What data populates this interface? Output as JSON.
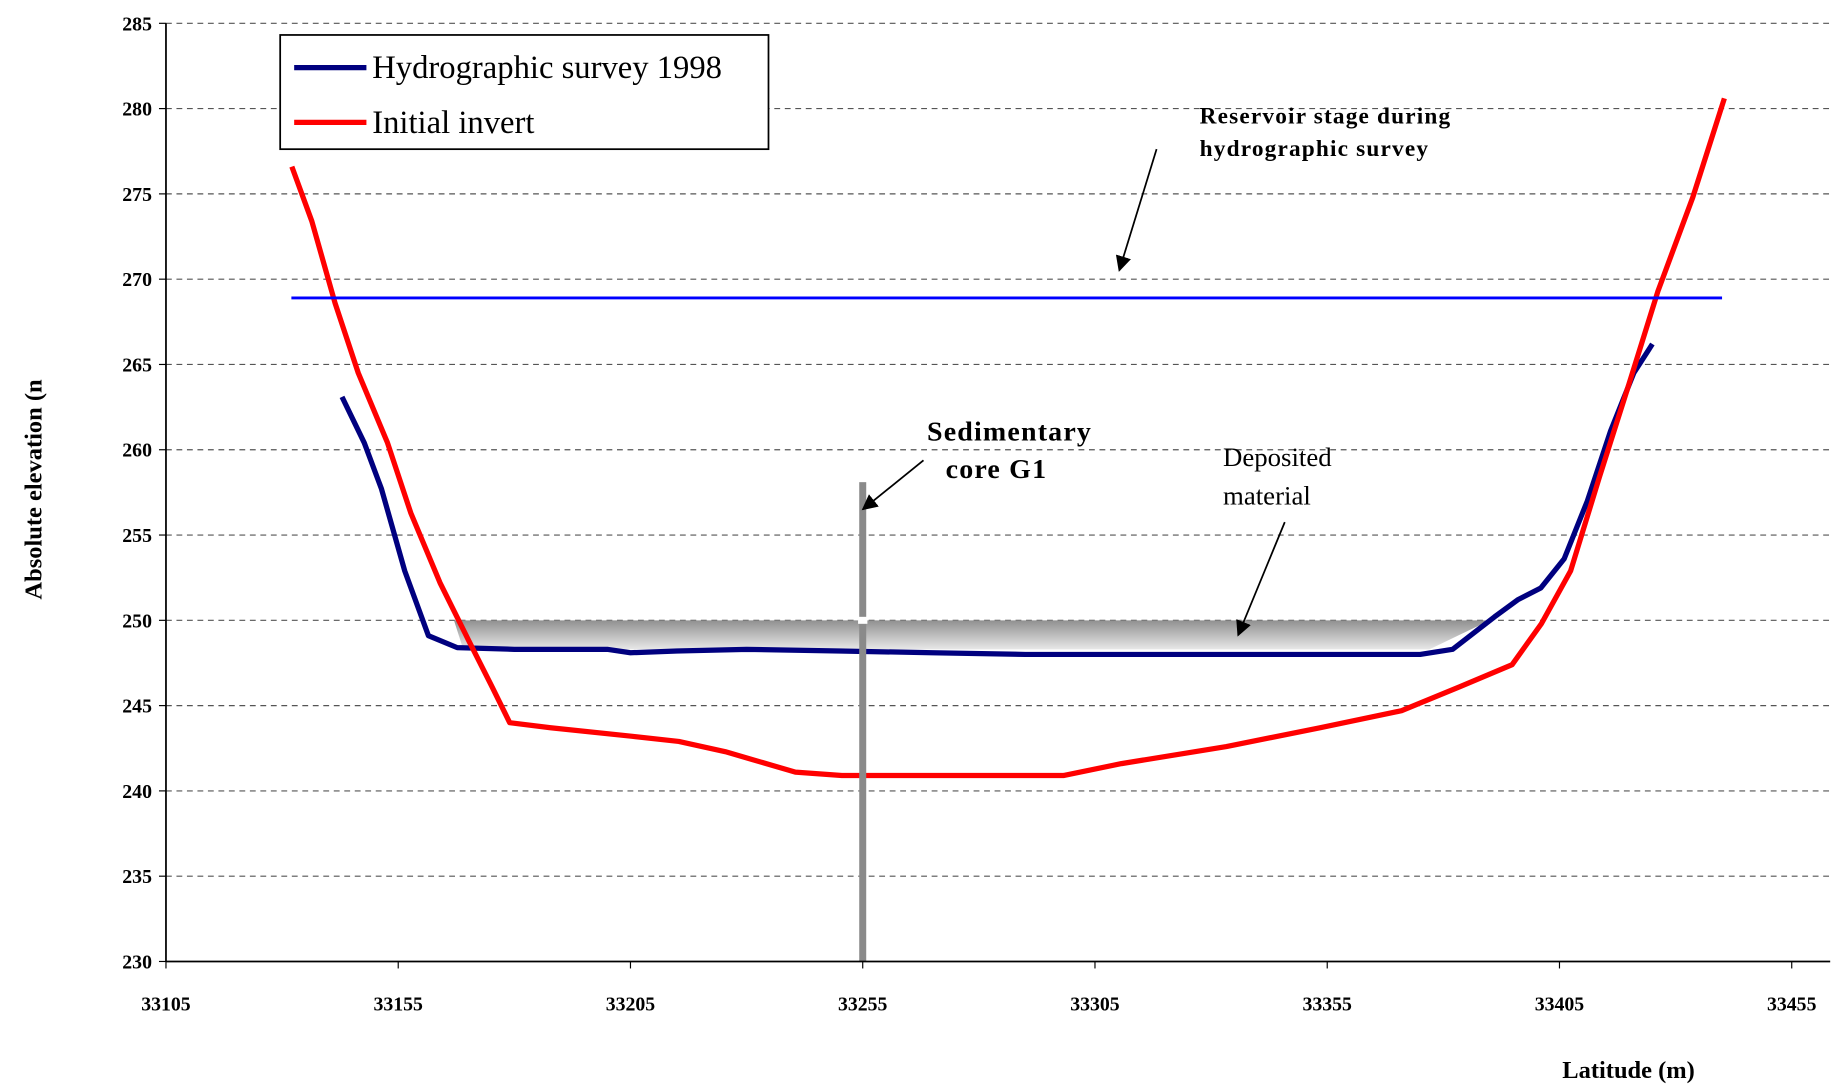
{
  "chart_data": {
    "type": "line",
    "ylabel": "Absolute elevation (n",
    "xlabel": "Latitude (m)",
    "xlim": [
      33105,
      33455
    ],
    "xticks": [
      33105,
      33155,
      33205,
      33255,
      33305,
      33355,
      33405,
      33455
    ],
    "ylim": [
      230,
      285
    ],
    "yticks": [
      230,
      235,
      240,
      245,
      250,
      255,
      260,
      265,
      270,
      275,
      280,
      285
    ],
    "grid": true,
    "legend": "upper left",
    "series": [
      {
        "name": "Hydrographic survey 1998",
        "color": "#00007f",
        "x": [
          33142.9,
          33147.7,
          33151.4,
          33156.4,
          33161.5,
          33167.7,
          33180,
          33200,
          33205,
          33215,
          33230,
          33250,
          33270,
          33290,
          33320,
          33350,
          33375,
          33382,
          33391,
          33396,
          33401,
          33406,
          33411,
          33416,
          33421,
          33425
        ],
        "values": [
          263.1,
          260.4,
          257.7,
          252.9,
          249.1,
          248.4,
          248.3,
          248.3,
          248.1,
          248.2,
          248.3,
          248.2,
          248.1,
          248.0,
          248.0,
          248.0,
          248.0,
          248.3,
          250.2,
          251.2,
          251.9,
          253.6,
          257.0,
          261.1,
          264.5,
          266.2
        ]
      },
      {
        "name": "Initial invert",
        "color": "#ff0000",
        "x": [
          33132.1,
          33136.4,
          33141.4,
          33146.4,
          33152.7,
          33157.7,
          33164,
          33170.2,
          33175.2,
          33179,
          33187.8,
          33205.4,
          33215.4,
          33225.4,
          33240.5,
          33250.5,
          33298.2,
          33310.7,
          33333.3,
          33353.4,
          33371,
          33383.5,
          33394.8,
          33401.1,
          33407.4,
          33413.6,
          33419.9,
          33426.2,
          33433.7,
          33440.5
        ],
        "values": [
          276.6,
          273.4,
          268.6,
          264.5,
          260.4,
          256.3,
          252.2,
          248.8,
          246.1,
          244.0,
          243.7,
          243.2,
          242.9,
          242.3,
          241.1,
          240.9,
          240.9,
          241.6,
          242.6,
          243.7,
          244.7,
          246.1,
          247.4,
          249.8,
          252.9,
          258.4,
          263.8,
          269.3,
          274.8,
          280.6
        ]
      }
    ],
    "stage": {
      "color": "#0000ff",
      "x": [
        33132,
        33440
      ],
      "y": 268.9
    },
    "core": {
      "x": 33255,
      "y": [
        230,
        258.1
      ]
    },
    "deposit": {
      "x": [
        33167,
        33390,
        33377,
        33169
      ],
      "y": [
        250,
        250,
        248.3,
        248.3
      ]
    },
    "annotations": [
      {
        "lines": [
          "Reservoir stage during",
          "hydrographic survey"
        ]
      },
      {
        "lines": [
          "Sedimentary",
          "core G1"
        ]
      },
      {
        "lines": [
          "Deposited",
          "material"
        ]
      }
    ]
  }
}
